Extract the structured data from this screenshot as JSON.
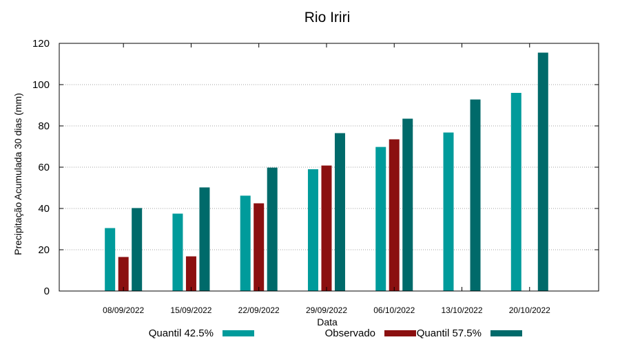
{
  "chart_data": {
    "type": "bar",
    "title": "Rio Iriri",
    "xlabel": "Data",
    "ylabel": "Precipitação Acumulada 30 dias (mm)",
    "ylim": [
      0,
      120
    ],
    "yticks": [
      0,
      20,
      40,
      60,
      80,
      100,
      120
    ],
    "grid": true,
    "legend_position": "bottom",
    "categories": [
      "08/09/2022",
      "15/09/2022",
      "22/09/2022",
      "29/09/2022",
      "06/10/2022",
      "13/10/2022",
      "20/10/2022"
    ],
    "series": [
      {
        "name": "Quantil 42.5%",
        "color": "#009b9b",
        "values": [
          30.5,
          37.5,
          46.2,
          59,
          69.8,
          76.8,
          96
        ]
      },
      {
        "name": "Observado",
        "color": "#8b1010",
        "values": [
          16.5,
          16.8,
          42.5,
          60.8,
          73.5,
          null,
          null
        ]
      },
      {
        "name": "Quantil 57.5%",
        "color": "#006a6a",
        "values": [
          40.2,
          50.2,
          59.8,
          76.5,
          83.5,
          92.8,
          115.5
        ]
      }
    ]
  }
}
